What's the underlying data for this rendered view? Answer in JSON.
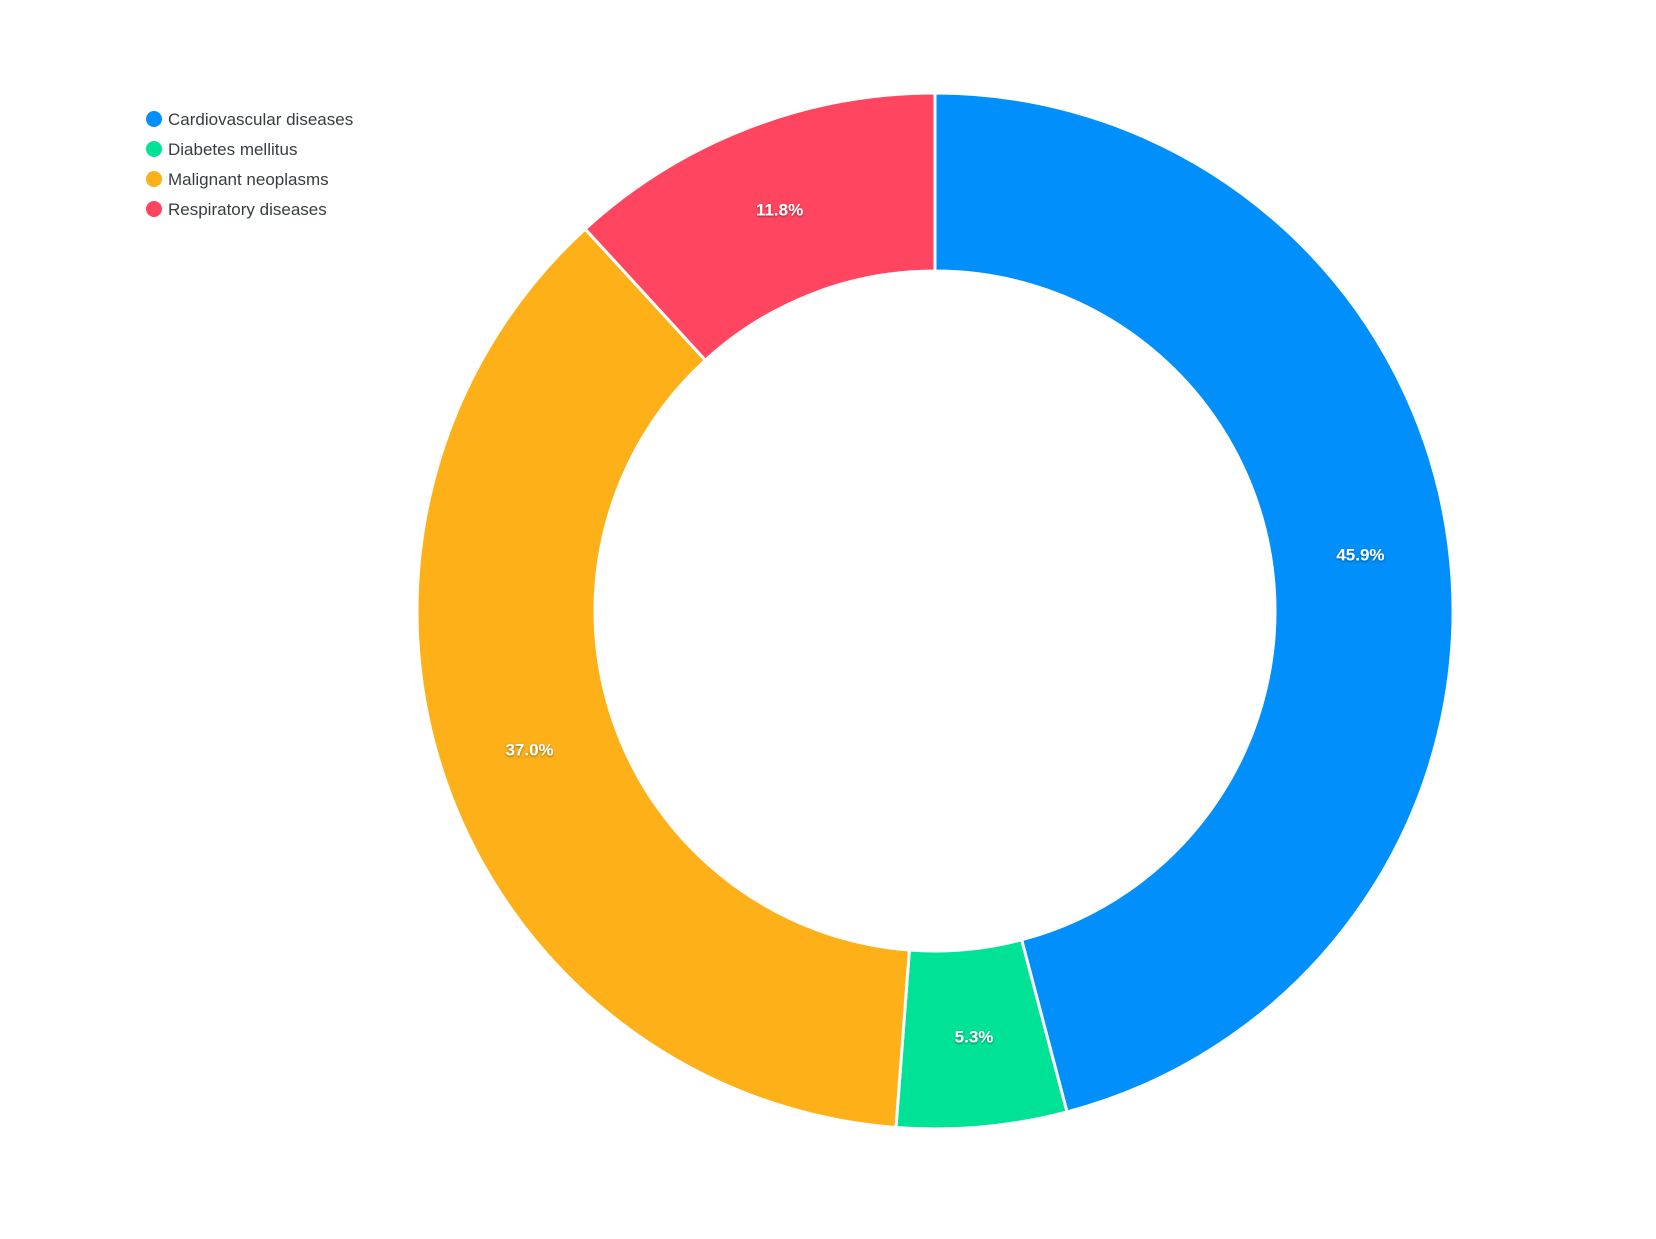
{
  "chart_data": {
    "type": "pie",
    "subtype": "donut",
    "title": "",
    "legend_position": "top-left",
    "direction": "clockwise",
    "start_angle_deg": 0,
    "donut_hole_ratio": 0.656,
    "background_color": "#ffffff",
    "slice_gap_color": "#ffffff",
    "label_text_color": "#ffffff",
    "legend_text_color": "#373d3f",
    "series": [
      {
        "name": "Cardiovascular diseases",
        "value": 45.9,
        "label": "45.9%",
        "color": "#008FFB"
      },
      {
        "name": "Diabetes mellitus",
        "value": 5.3,
        "label": "5.3%",
        "color": "#00E396"
      },
      {
        "name": "Malignant neoplasms",
        "value": 37.0,
        "label": "37.0%",
        "color": "#FEB019"
      },
      {
        "name": "Respiratory diseases",
        "value": 11.8,
        "label": "11.8%",
        "color": "#FF4560"
      }
    ]
  }
}
